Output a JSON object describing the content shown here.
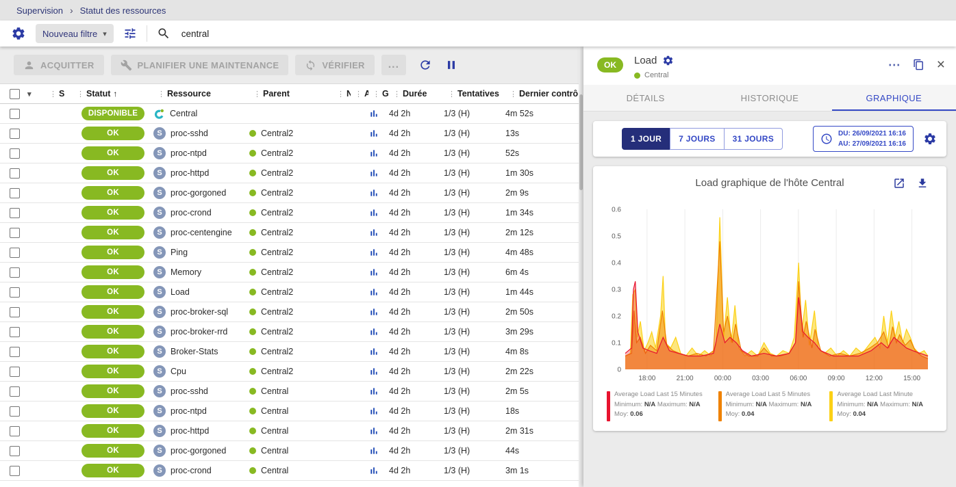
{
  "breadcrumb": {
    "root": "Supervision",
    "current": "Statut des ressources"
  },
  "filter_bar": {
    "preset": "Nouveau filtre",
    "search_value": "central"
  },
  "toolbar": {
    "acquitter": "ACQUITTER",
    "maintenance": "PLANIFIER UNE MAINTENANCE",
    "verifier": "VÉRIFIER",
    "more": "..."
  },
  "table": {
    "headers": {
      "s": "S",
      "statut": "Statut",
      "ressource": "Ressource",
      "parent": "Parent",
      "n": "N",
      "a": "A",
      "g": "G",
      "duree": "Durée",
      "tentatives": "Tentatives",
      "dernier": "Dernier contrôle"
    },
    "rows": [
      {
        "type": "host",
        "status": "DISPONIBLE",
        "resource": "Central",
        "parent": "",
        "duration": "4d 2h",
        "tries": "1/3 (H)",
        "last_check": "4m 52s"
      },
      {
        "type": "service",
        "status": "OK",
        "resource": "proc-sshd",
        "parent": "Central2",
        "duration": "4d 2h",
        "tries": "1/3 (H)",
        "last_check": "13s"
      },
      {
        "type": "service",
        "status": "OK",
        "resource": "proc-ntpd",
        "parent": "Central2",
        "duration": "4d 2h",
        "tries": "1/3 (H)",
        "last_check": "52s"
      },
      {
        "type": "service",
        "status": "OK",
        "resource": "proc-httpd",
        "parent": "Central2",
        "duration": "4d 2h",
        "tries": "1/3 (H)",
        "last_check": "1m 30s"
      },
      {
        "type": "service",
        "status": "OK",
        "resource": "proc-gorgoned",
        "parent": "Central2",
        "duration": "4d 2h",
        "tries": "1/3 (H)",
        "last_check": "2m 9s"
      },
      {
        "type": "service",
        "status": "OK",
        "resource": "proc-crond",
        "parent": "Central2",
        "duration": "4d 2h",
        "tries": "1/3 (H)",
        "last_check": "1m 34s"
      },
      {
        "type": "service",
        "status": "OK",
        "resource": "proc-centengine",
        "parent": "Central2",
        "duration": "4d 2h",
        "tries": "1/3 (H)",
        "last_check": "2m 12s"
      },
      {
        "type": "service",
        "status": "OK",
        "resource": "Ping",
        "parent": "Central2",
        "duration": "4d 2h",
        "tries": "1/3 (H)",
        "last_check": "4m 48s"
      },
      {
        "type": "service",
        "status": "OK",
        "resource": "Memory",
        "parent": "Central2",
        "duration": "4d 2h",
        "tries": "1/3 (H)",
        "last_check": "6m 4s"
      },
      {
        "type": "service",
        "status": "OK",
        "resource": "Load",
        "parent": "Central2",
        "duration": "4d 2h",
        "tries": "1/3 (H)",
        "last_check": "1m 44s"
      },
      {
        "type": "service",
        "status": "OK",
        "resource": "proc-broker-sql",
        "parent": "Central2",
        "duration": "4d 2h",
        "tries": "1/3 (H)",
        "last_check": "2m 50s"
      },
      {
        "type": "service",
        "status": "OK",
        "resource": "proc-broker-rrd",
        "parent": "Central2",
        "duration": "4d 2h",
        "tries": "1/3 (H)",
        "last_check": "3m 29s"
      },
      {
        "type": "service",
        "status": "OK",
        "resource": "Broker-Stats",
        "parent": "Central2",
        "duration": "4d 2h",
        "tries": "1/3 (H)",
        "last_check": "4m 8s"
      },
      {
        "type": "service",
        "status": "OK",
        "resource": "Cpu",
        "parent": "Central2",
        "duration": "4d 2h",
        "tries": "1/3 (H)",
        "last_check": "2m 22s"
      },
      {
        "type": "service",
        "status": "OK",
        "resource": "proc-sshd",
        "parent": "Central",
        "duration": "4d 2h",
        "tries": "1/3 (H)",
        "last_check": "2m 5s"
      },
      {
        "type": "service",
        "status": "OK",
        "resource": "proc-ntpd",
        "parent": "Central",
        "duration": "4d 2h",
        "tries": "1/3 (H)",
        "last_check": "18s"
      },
      {
        "type": "service",
        "status": "OK",
        "resource": "proc-httpd",
        "parent": "Central",
        "duration": "4d 2h",
        "tries": "1/3 (H)",
        "last_check": "2m 31s"
      },
      {
        "type": "service",
        "status": "OK",
        "resource": "proc-gorgoned",
        "parent": "Central",
        "duration": "4d 2h",
        "tries": "1/3 (H)",
        "last_check": "44s"
      },
      {
        "type": "service",
        "status": "OK",
        "resource": "proc-crond",
        "parent": "Central",
        "duration": "4d 2h",
        "tries": "1/3 (H)",
        "last_check": "3m 1s"
      }
    ]
  },
  "panel": {
    "status": "OK",
    "title": "Load",
    "parent": "Central",
    "tabs": [
      {
        "label": "DÉTAILS",
        "active": false
      },
      {
        "label": "HISTORIQUE",
        "active": false
      },
      {
        "label": "GRAPHIQUE",
        "active": true
      }
    ],
    "ranges": [
      {
        "label": "1 JOUR",
        "active": true
      },
      {
        "label": "7 JOURS",
        "active": false
      },
      {
        "label": "31 JOURS",
        "active": false
      }
    ],
    "date_from": "DU: 26/09/2021 16:16",
    "date_to": "AU: 27/09/2021 16:16"
  },
  "chart_data": {
    "type": "area",
    "title": "Load graphique de l'hôte Central",
    "ylim": [
      0,
      0.6
    ],
    "yticks": [
      0,
      0.1,
      0.2,
      0.3,
      0.4,
      0.5,
      0.6
    ],
    "xlim": [
      0,
      24
    ],
    "xticks": [
      {
        "x": 1.73,
        "label": "18:00"
      },
      {
        "x": 4.73,
        "label": "21:00"
      },
      {
        "x": 7.73,
        "label": "00:00"
      },
      {
        "x": 10.73,
        "label": "03:00"
      },
      {
        "x": 13.73,
        "label": "06:00"
      },
      {
        "x": 16.73,
        "label": "09:00"
      },
      {
        "x": 19.73,
        "label": "12:00"
      },
      {
        "x": 22.73,
        "label": "15:00"
      }
    ],
    "legend_labels": {
      "min": "Minimum:",
      "max": "Maximum:",
      "avg": "Moy:"
    },
    "series": [
      {
        "name": "Average Load Last 15 Minutes",
        "color": "#e8132e",
        "fill_opacity": 0.3,
        "min": "N/A",
        "max": "N/A",
        "avg": "0.06",
        "points": [
          [
            0,
            0.06
          ],
          [
            0.5,
            0.08
          ],
          [
            0.65,
            0.3
          ],
          [
            0.8,
            0.33
          ],
          [
            1,
            0.14
          ],
          [
            1.4,
            0.08
          ],
          [
            1.9,
            0.07
          ],
          [
            2.5,
            0.06
          ],
          [
            3,
            0.12
          ],
          [
            3.5,
            0.07
          ],
          [
            4.2,
            0.06
          ],
          [
            5,
            0.05
          ],
          [
            6,
            0.05
          ],
          [
            7,
            0.06
          ],
          [
            7.5,
            0.17
          ],
          [
            7.9,
            0.1
          ],
          [
            8.3,
            0.12
          ],
          [
            8.8,
            0.1
          ],
          [
            9.3,
            0.07
          ],
          [
            10,
            0.05
          ],
          [
            11,
            0.06
          ],
          [
            12,
            0.05
          ],
          [
            13,
            0.06
          ],
          [
            13.5,
            0.1
          ],
          [
            13.75,
            0.27
          ],
          [
            14.1,
            0.14
          ],
          [
            14.5,
            0.12
          ],
          [
            15,
            0.1
          ],
          [
            15.5,
            0.07
          ],
          [
            16.5,
            0.05
          ],
          [
            17.5,
            0.05
          ],
          [
            18.5,
            0.05
          ],
          [
            19.5,
            0.07
          ],
          [
            20.3,
            0.1
          ],
          [
            20.8,
            0.08
          ],
          [
            21.3,
            0.12
          ],
          [
            21.8,
            0.1
          ],
          [
            22.3,
            0.08
          ],
          [
            22.8,
            0.07
          ],
          [
            23.4,
            0.06
          ],
          [
            24,
            0.05
          ]
        ]
      },
      {
        "name": "Average Load Last 5 Minutes",
        "color": "#ef8200",
        "fill_opacity": 0.45,
        "min": "N/A",
        "max": "N/A",
        "avg": "0.04",
        "points": [
          [
            0,
            0.05
          ],
          [
            0.5,
            0.06
          ],
          [
            0.7,
            0.22
          ],
          [
            0.9,
            0.1
          ],
          [
            1.2,
            0.12
          ],
          [
            1.6,
            0.06
          ],
          [
            2,
            0.09
          ],
          [
            2.5,
            0.07
          ],
          [
            2.95,
            0.22
          ],
          [
            3.3,
            0.09
          ],
          [
            3.8,
            0.07
          ],
          [
            4.3,
            0.06
          ],
          [
            5,
            0.05
          ],
          [
            5.7,
            0.06
          ],
          [
            6.4,
            0.05
          ],
          [
            7,
            0.07
          ],
          [
            7.5,
            0.48
          ],
          [
            7.8,
            0.14
          ],
          [
            8.1,
            0.2
          ],
          [
            8.5,
            0.1
          ],
          [
            8.75,
            0.17
          ],
          [
            9.2,
            0.07
          ],
          [
            9.8,
            0.05
          ],
          [
            10.5,
            0.05
          ],
          [
            11,
            0.08
          ],
          [
            11.6,
            0.05
          ],
          [
            12.3,
            0.05
          ],
          [
            13,
            0.06
          ],
          [
            13.5,
            0.1
          ],
          [
            13.75,
            0.33
          ],
          [
            14.1,
            0.12
          ],
          [
            14.35,
            0.18
          ],
          [
            14.8,
            0.08
          ],
          [
            15.05,
            0.15
          ],
          [
            15.5,
            0.07
          ],
          [
            16.2,
            0.05
          ],
          [
            17,
            0.06
          ],
          [
            17.8,
            0.05
          ],
          [
            18.6,
            0.06
          ],
          [
            19.4,
            0.08
          ],
          [
            20,
            0.1
          ],
          [
            20.5,
            0.14
          ],
          [
            20.9,
            0.08
          ],
          [
            21.2,
            0.16
          ],
          [
            21.5,
            0.1
          ],
          [
            21.75,
            0.13
          ],
          [
            22.2,
            0.09
          ],
          [
            22.6,
            0.11
          ],
          [
            23,
            0.07
          ],
          [
            23.5,
            0.05
          ],
          [
            24,
            0.04
          ]
        ]
      },
      {
        "name": "Average Load Last Minute",
        "color": "#fcd116",
        "fill_opacity": 0.55,
        "min": "N/A",
        "max": "N/A",
        "avg": "0.04",
        "points": [
          [
            0,
            0.05
          ],
          [
            0.4,
            0.06
          ],
          [
            0.6,
            0.28
          ],
          [
            0.8,
            0.3
          ],
          [
            0.95,
            0.12
          ],
          [
            1.2,
            0.18
          ],
          [
            1.5,
            0.07
          ],
          [
            1.8,
            0.1
          ],
          [
            2.1,
            0.14
          ],
          [
            2.4,
            0.08
          ],
          [
            2.8,
            0.2
          ],
          [
            3,
            0.35
          ],
          [
            3.2,
            0.1
          ],
          [
            3.6,
            0.08
          ],
          [
            4,
            0.12
          ],
          [
            4.4,
            0.06
          ],
          [
            4.8,
            0.05
          ],
          [
            5.3,
            0.08
          ],
          [
            5.8,
            0.05
          ],
          [
            6.3,
            0.07
          ],
          [
            6.8,
            0.05
          ],
          [
            7.2,
            0.09
          ],
          [
            7.5,
            0.57
          ],
          [
            7.8,
            0.12
          ],
          [
            8.1,
            0.27
          ],
          [
            8.4,
            0.1
          ],
          [
            8.7,
            0.24
          ],
          [
            9,
            0.08
          ],
          [
            9.5,
            0.05
          ],
          [
            10,
            0.07
          ],
          [
            10.5,
            0.05
          ],
          [
            11,
            0.1
          ],
          [
            11.5,
            0.06
          ],
          [
            12,
            0.05
          ],
          [
            12.5,
            0.07
          ],
          [
            13,
            0.06
          ],
          [
            13.4,
            0.12
          ],
          [
            13.75,
            0.4
          ],
          [
            14,
            0.14
          ],
          [
            14.3,
            0.26
          ],
          [
            14.6,
            0.09
          ],
          [
            15,
            0.22
          ],
          [
            15.3,
            0.08
          ],
          [
            15.8,
            0.06
          ],
          [
            16.3,
            0.08
          ],
          [
            16.8,
            0.05
          ],
          [
            17.3,
            0.07
          ],
          [
            17.8,
            0.05
          ],
          [
            18.3,
            0.08
          ],
          [
            18.8,
            0.06
          ],
          [
            19.3,
            0.09
          ],
          [
            19.8,
            0.12
          ],
          [
            20.2,
            0.08
          ],
          [
            20.5,
            0.2
          ],
          [
            20.8,
            0.1
          ],
          [
            21.1,
            0.22
          ],
          [
            21.4,
            0.12
          ],
          [
            21.7,
            0.18
          ],
          [
            22,
            0.1
          ],
          [
            22.3,
            0.15
          ],
          [
            22.6,
            0.12
          ],
          [
            22.9,
            0.08
          ],
          [
            23.3,
            0.06
          ],
          [
            23.7,
            0.07
          ],
          [
            24,
            0.05
          ]
        ]
      }
    ]
  }
}
